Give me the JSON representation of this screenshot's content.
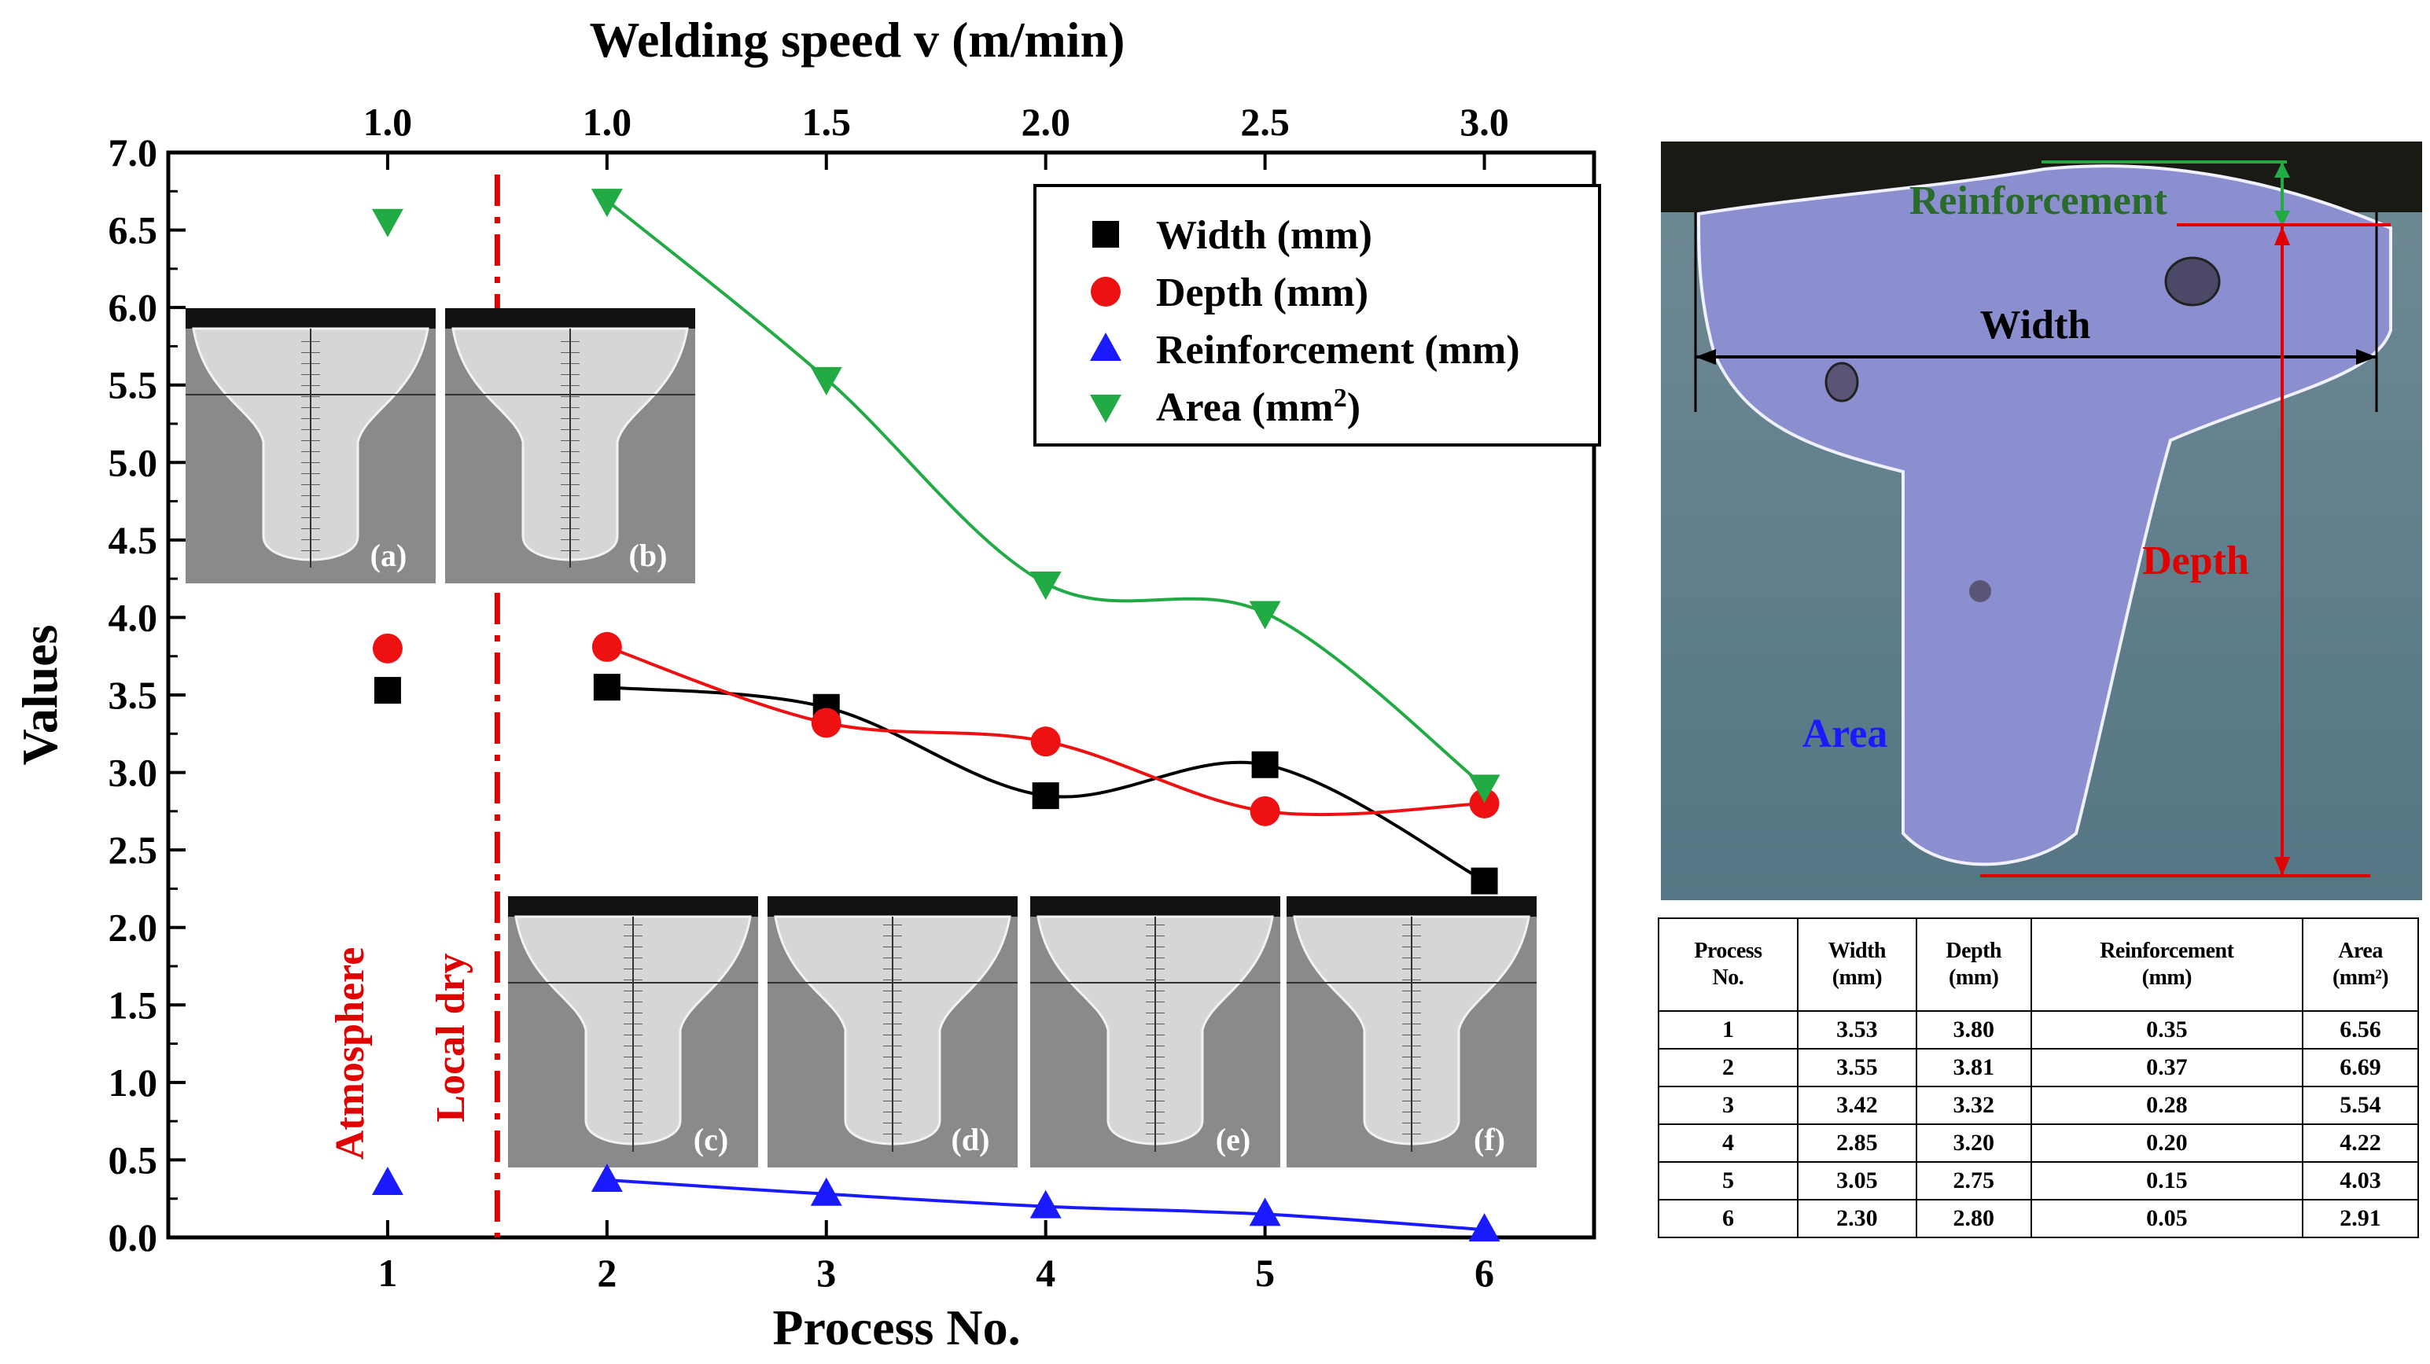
{
  "chart_data": {
    "type": "line",
    "top_axis": {
      "title": "Welding speed v (m/min)",
      "tick_labels": [
        "1.0",
        "1.0",
        "1.5",
        "2.0",
        "2.5",
        "3.0"
      ]
    },
    "xlabel": "Process No.",
    "ylabel": "Values",
    "x_ticks": [
      1,
      2,
      3,
      4,
      5,
      6
    ],
    "xlim": [
      0.0,
      6.5
    ],
    "ylim": [
      0.0,
      7.0
    ],
    "y_ticks": [
      "0.0",
      "0.5",
      "1.0",
      "1.5",
      "2.0",
      "2.5",
      "3.0",
      "3.5",
      "4.0",
      "4.5",
      "5.0",
      "5.5",
      "6.0",
      "6.5",
      "7.0"
    ],
    "grid": false,
    "legend_position": "top-right",
    "separator_x": 1.5,
    "region_labels": [
      "Atmosphere",
      "Local dry"
    ],
    "series": [
      {
        "name": "Width (mm)",
        "color": "#000000",
        "marker": "square",
        "points": [
          [
            1,
            3.53
          ],
          [
            2,
            3.55
          ],
          [
            3,
            3.42
          ],
          [
            4,
            2.85
          ],
          [
            5,
            3.05
          ],
          [
            6,
            2.3
          ]
        ]
      },
      {
        "name": "Depth (mm)",
        "color": "#ee1111",
        "marker": "circle",
        "points": [
          [
            1,
            3.8
          ],
          [
            2,
            3.81
          ],
          [
            3,
            3.32
          ],
          [
            4,
            3.2
          ],
          [
            5,
            2.75
          ],
          [
            6,
            2.8
          ]
        ]
      },
      {
        "name": "Reinforcement (mm)",
        "color": "#1a1aff",
        "marker": "triangle-up",
        "points": [
          [
            1,
            0.35
          ],
          [
            2,
            0.37
          ],
          [
            3,
            0.28
          ],
          [
            4,
            0.2
          ],
          [
            5,
            0.15
          ],
          [
            6,
            0.05
          ]
        ]
      },
      {
        "name": "Area (mm2)",
        "color": "#22aa44",
        "marker": "triangle-down",
        "points": [
          [
            1,
            6.56
          ],
          [
            2,
            6.69
          ],
          [
            3,
            5.54
          ],
          [
            4,
            4.22
          ],
          [
            5,
            4.03
          ],
          [
            6,
            2.91
          ]
        ]
      }
    ]
  },
  "micrograph_labels": [
    "(a)",
    "(b)",
    "(c)",
    "(d)",
    "(e)",
    "(f)"
  ],
  "weld_photo": {
    "labels": {
      "reinforcement": "Reinforcement",
      "width": "Width",
      "depth": "Depth",
      "area": "Area"
    }
  },
  "table": {
    "headers": [
      [
        "Process",
        "No."
      ],
      [
        "Width",
        "(mm)"
      ],
      [
        "Depth",
        "(mm)"
      ],
      [
        "Reinforcement",
        "(mm)"
      ],
      [
        "Area",
        "(mm²)"
      ]
    ],
    "rows": [
      [
        "1",
        "3.53",
        "3.80",
        "0.35",
        "6.56"
      ],
      [
        "2",
        "3.55",
        "3.81",
        "0.37",
        "6.69"
      ],
      [
        "3",
        "3.42",
        "3.32",
        "0.28",
        "5.54"
      ],
      [
        "4",
        "2.85",
        "3.20",
        "0.20",
        "4.22"
      ],
      [
        "5",
        "3.05",
        "2.75",
        "0.15",
        "4.03"
      ],
      [
        "6",
        "2.30",
        "2.80",
        "0.05",
        "2.91"
      ]
    ]
  }
}
